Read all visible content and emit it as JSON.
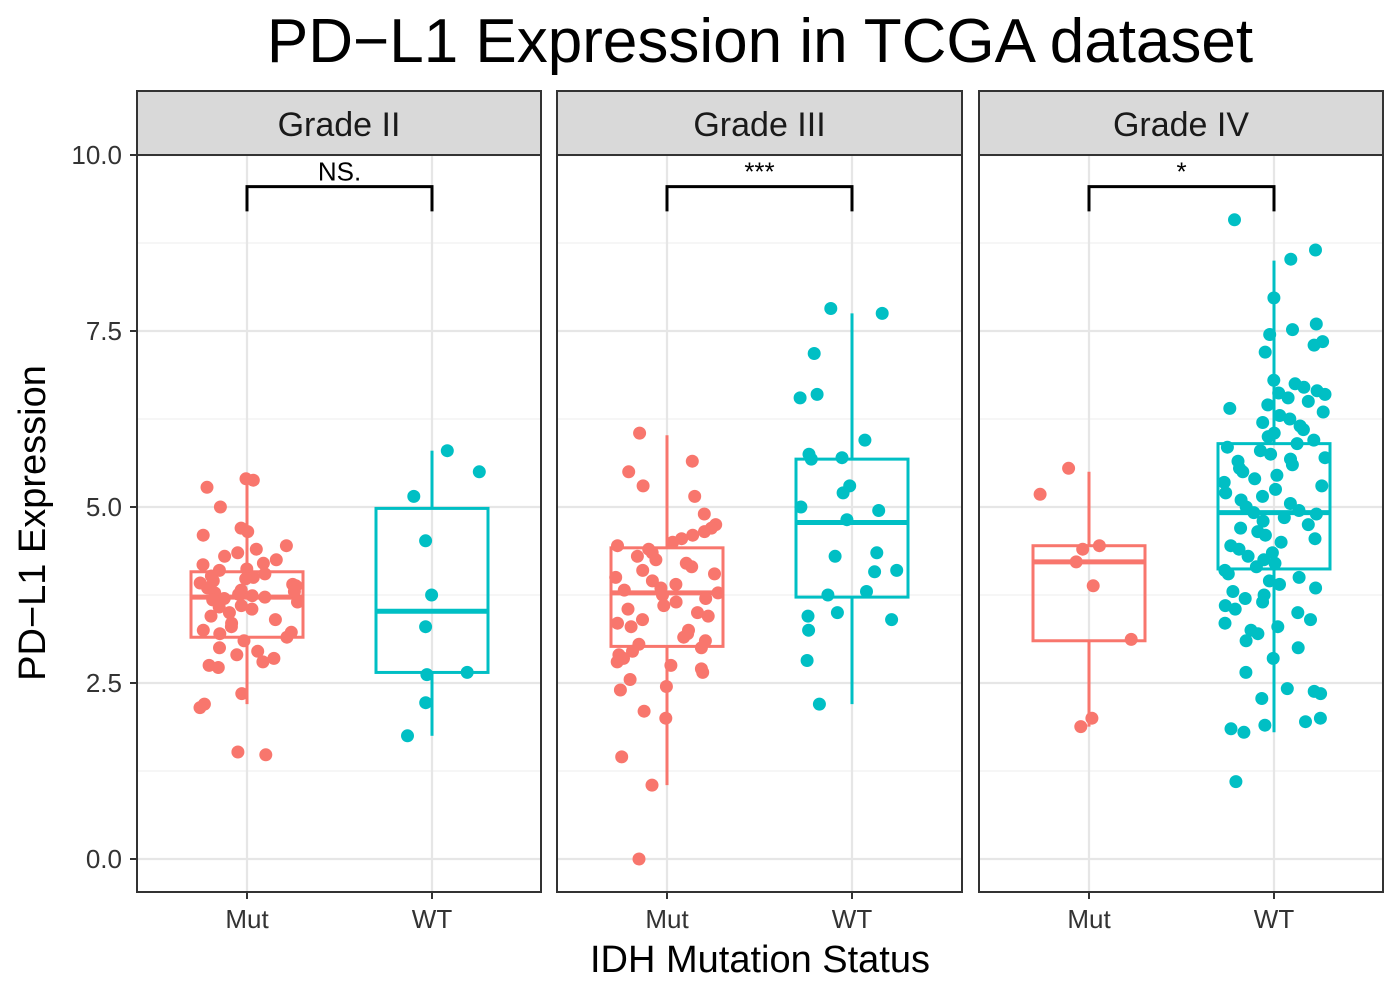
{
  "chart_data": {
    "type": "box",
    "title": "PD−L1 Expression in TCGA dataset",
    "xlabel": "IDH Mutation Status",
    "ylabel": "PD−L1 Expression",
    "ylim": [
      -0.4,
      10.5
    ],
    "yticks": [
      "0.0",
      "2.5",
      "5.0",
      "7.5",
      "10.0"
    ],
    "ytick_values": [
      0,
      2.5,
      5,
      7.5,
      10
    ],
    "categories": [
      "Mut",
      "WT"
    ],
    "colors": {
      "Mut": "#F8766D",
      "WT": "#00BFC4"
    },
    "grid": true,
    "legend": "none",
    "panels": [
      {
        "label": "Grade II",
        "significance": "NS.",
        "boxes": [
          {
            "group": "Mut",
            "whisker_low": 2.2,
            "q1": 3.15,
            "median": 3.72,
            "q3": 4.08,
            "whisker_high": 5.35
          },
          {
            "group": "WT",
            "whisker_low": 1.75,
            "q1": 2.65,
            "median": 3.52,
            "q3": 4.98,
            "whisker_high": 5.8
          }
        ],
        "points": [
          {
            "group": "Mut",
            "y": [
              5.4,
              5.38,
              5.28,
              5.0,
              4.7,
              4.65,
              4.6,
              4.45,
              4.4,
              4.35,
              4.3,
              4.25,
              4.2,
              4.18,
              4.12,
              4.1,
              4.05,
              4.02,
              4.0,
              3.98,
              3.95,
              3.92,
              3.9,
              3.88,
              3.85,
              3.82,
              3.8,
              3.78,
              3.76,
              3.74,
              3.72,
              3.7,
              3.68,
              3.65,
              3.6,
              3.58,
              3.55,
              3.5,
              3.45,
              3.4,
              3.35,
              3.3,
              3.25,
              3.22,
              3.2,
              3.15,
              3.1,
              3.0,
              2.95,
              2.9,
              2.85,
              2.8,
              2.75,
              2.72,
              2.35,
              2.2,
              2.15,
              1.52,
              1.48
            ]
          },
          {
            "group": "WT",
            "y": [
              5.8,
              5.5,
              5.15,
              4.52,
              3.75,
              3.3,
              2.65,
              2.62,
              2.22,
              1.75
            ]
          }
        ]
      },
      {
        "label": "Grade III",
        "significance": "***",
        "boxes": [
          {
            "group": "Mut",
            "whisker_low": 1.05,
            "q1": 3.02,
            "median": 3.78,
            "q3": 4.42,
            "whisker_high": 6.02
          },
          {
            "group": "WT",
            "whisker_low": 2.2,
            "q1": 3.72,
            "median": 4.78,
            "q3": 5.68,
            "whisker_high": 7.75
          }
        ],
        "points": [
          {
            "group": "Mut",
            "y": [
              6.05,
              5.65,
              5.5,
              5.3,
              5.15,
              4.9,
              4.75,
              4.7,
              4.65,
              4.6,
              4.55,
              4.5,
              4.45,
              4.4,
              4.35,
              4.3,
              4.25,
              4.2,
              4.15,
              4.1,
              4.05,
              4.0,
              3.95,
              3.9,
              3.85,
              3.82,
              3.78,
              3.75,
              3.7,
              3.65,
              3.6,
              3.55,
              3.5,
              3.45,
              3.4,
              3.35,
              3.3,
              3.25,
              3.2,
              3.15,
              3.1,
              3.05,
              3.0,
              2.95,
              2.9,
              2.85,
              2.8,
              2.75,
              2.7,
              2.65,
              2.55,
              2.45,
              2.4,
              2.1,
              2.0,
              1.45,
              1.05,
              0.0
            ]
          },
          {
            "group": "WT",
            "y": [
              7.82,
              7.75,
              7.18,
              6.6,
              6.55,
              5.95,
              5.75,
              5.7,
              5.68,
              5.3,
              5.2,
              5.0,
              4.95,
              4.82,
              4.35,
              4.3,
              4.1,
              4.08,
              3.8,
              3.75,
              3.5,
              3.45,
              3.4,
              3.25,
              2.82,
              2.2
            ]
          }
        ]
      },
      {
        "label": "Grade IV",
        "significance": "*",
        "boxes": [
          {
            "group": "Mut",
            "whisker_low": 1.88,
            "q1": 3.1,
            "median": 4.22,
            "q3": 4.45,
            "whisker_high": 5.5
          },
          {
            "group": "WT",
            "whisker_low": 1.8,
            "q1": 4.12,
            "median": 4.92,
            "q3": 5.9,
            "whisker_high": 8.5
          }
        ],
        "points": [
          {
            "group": "Mut",
            "y": [
              5.55,
              5.18,
              4.45,
              4.4,
              4.22,
              3.88,
              3.12,
              2.0,
              1.88
            ]
          },
          {
            "group": "WT",
            "y": [
              9.08,
              8.65,
              8.52,
              7.97,
              7.6,
              7.52,
              7.45,
              7.35,
              7.3,
              7.2,
              6.8,
              6.75,
              6.7,
              6.65,
              6.62,
              6.6,
              6.55,
              6.5,
              6.45,
              6.4,
              6.35,
              6.3,
              6.25,
              6.2,
              6.15,
              6.1,
              6.05,
              6.0,
              5.95,
              5.9,
              5.85,
              5.8,
              5.75,
              5.7,
              5.68,
              5.65,
              5.6,
              5.55,
              5.5,
              5.45,
              5.4,
              5.35,
              5.3,
              5.25,
              5.2,
              5.15,
              5.1,
              5.05,
              5.0,
              4.95,
              4.92,
              4.9,
              4.85,
              4.8,
              4.75,
              4.7,
              4.65,
              4.6,
              4.55,
              4.5,
              4.45,
              4.4,
              4.35,
              4.3,
              4.25,
              4.2,
              4.15,
              4.1,
              4.05,
              4.0,
              3.95,
              3.9,
              3.85,
              3.8,
              3.75,
              3.7,
              3.65,
              3.6,
              3.55,
              3.5,
              3.4,
              3.35,
              3.3,
              3.25,
              3.2,
              3.1,
              3.0,
              2.85,
              2.65,
              2.42,
              2.38,
              2.35,
              2.28,
              2.0,
              1.95,
              1.9,
              1.85,
              1.8,
              1.1
            ]
          }
        ]
      }
    ]
  }
}
